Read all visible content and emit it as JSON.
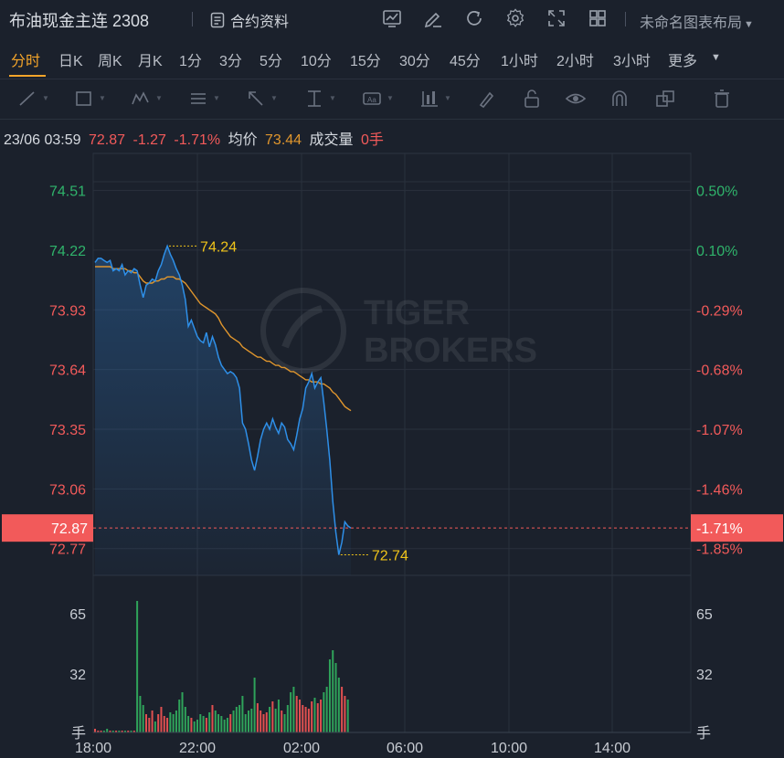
{
  "header": {
    "title": "布油现金主连 2308",
    "contract_info": "合约资料",
    "layout_name": "未命名图表布局",
    "icons": [
      "chart-type-icon",
      "draw-icon",
      "refresh-icon",
      "settings-icon",
      "fullscreen-icon",
      "layout-grid-icon"
    ]
  },
  "periods": {
    "items": [
      "分时",
      "日K",
      "周K",
      "月K",
      "1分",
      "3分",
      "5分",
      "10分",
      "15分",
      "30分",
      "45分",
      "1小时",
      "2小时",
      "3小时",
      "更多"
    ],
    "active": "分时"
  },
  "toolbar": {
    "icons": [
      "line-tool-icon",
      "rectangle-tool-icon",
      "pattern-tool-icon",
      "fibonacci-tool-icon",
      "arrow-tool-icon",
      "measure-tool-icon",
      "text-tool-icon",
      "indicator-tool-icon",
      "brush-icon",
      "lock-icon",
      "eye-icon",
      "magnet-icon",
      "layers-icon",
      "trash-icon"
    ]
  },
  "info": {
    "datetime": "23/06 03:59",
    "price": "72.87",
    "change": "-1.27",
    "change_pct": "-1.71%",
    "avg_label": "均价",
    "avg_value": "73.44",
    "volume_label": "成交量",
    "volume_value": "0手"
  },
  "chart_data": {
    "type": "line",
    "price_axis": [
      "74.51",
      "74.22",
      "73.93",
      "73.64",
      "73.35",
      "73.06",
      "72.77"
    ],
    "price_axis_values": [
      74.51,
      74.22,
      73.93,
      73.64,
      73.35,
      73.06,
      72.77
    ],
    "pct_axis": [
      "0.50%",
      "0.10%",
      "-0.29%",
      "-0.68%",
      "-1.07%",
      "-1.46%",
      "-1.85%"
    ],
    "current_price_label": "72.87",
    "current_pct_label": "-1.71%",
    "high_label": "74.24",
    "low_label": "72.74",
    "volume_axis": [
      "65",
      "32",
      "手"
    ],
    "volume_axis_values": [
      65,
      32,
      0
    ],
    "x_labels": [
      "18:00",
      "22:00",
      "02:00",
      "06:00",
      "10:00",
      "14:00"
    ],
    "ylim": [
      72.64,
      74.69
    ],
    "colors": {
      "price": "#2e8fe8",
      "avg": "#e0962d",
      "up": "#e05050",
      "down": "#2fa35a",
      "axis_up": "#2fb36b",
      "axis_down": "#f25a5a"
    },
    "price_series": [
      74.16,
      74.18,
      74.18,
      74.17,
      74.16,
      74.17,
      74.12,
      74.13,
      74.12,
      74.15,
      74.1,
      74.12,
      74.11,
      74.13,
      74.12,
      74.05,
      73.99,
      74.05,
      74.06,
      74.08,
      74.07,
      74.12,
      74.15,
      74.2,
      74.24,
      74.2,
      74.17,
      74.13,
      74.1,
      74.05,
      73.98,
      73.85,
      73.88,
      73.84,
      73.8,
      73.78,
      73.77,
      73.82,
      73.75,
      73.8,
      73.76,
      73.7,
      73.66,
      73.64,
      73.62,
      73.63,
      73.62,
      73.6,
      73.55,
      73.38,
      73.35,
      73.28,
      73.2,
      73.15,
      73.22,
      73.3,
      73.35,
      73.38,
      73.35,
      73.4,
      73.36,
      73.33,
      73.38,
      73.36,
      73.3,
      73.28,
      73.25,
      73.32,
      73.4,
      73.45,
      73.55,
      73.58,
      73.62,
      73.55,
      73.58,
      73.6,
      73.48,
      73.35,
      73.2,
      73.0,
      72.85,
      72.74,
      72.8,
      72.9,
      72.88,
      72.87
    ],
    "avg_series": [
      74.14,
      74.14,
      74.14,
      74.14,
      74.14,
      74.14,
      74.13,
      74.13,
      74.13,
      74.13,
      74.13,
      74.12,
      74.12,
      74.11,
      74.11,
      74.09,
      74.07,
      74.06,
      74.06,
      74.06,
      74.07,
      74.07,
      74.08,
      74.08,
      74.09,
      74.09,
      74.09,
      74.08,
      74.08,
      74.07,
      74.06,
      74.04,
      74.02,
      74.0,
      73.98,
      73.96,
      73.95,
      73.94,
      73.93,
      73.92,
      73.91,
      73.89,
      73.86,
      73.84,
      73.82,
      73.8,
      73.79,
      73.78,
      73.77,
      73.75,
      73.74,
      73.73,
      73.72,
      73.71,
      73.7,
      73.7,
      73.69,
      73.68,
      73.68,
      73.67,
      73.66,
      73.66,
      73.65,
      73.65,
      73.64,
      73.63,
      73.63,
      73.62,
      73.61,
      73.6,
      73.59,
      73.59,
      73.58,
      73.58,
      73.58,
      73.57,
      73.57,
      73.56,
      73.55,
      73.53,
      73.52,
      73.5,
      73.48,
      73.46,
      73.45,
      73.44
    ],
    "volumes": [
      2,
      1,
      1,
      1,
      2,
      1,
      1,
      1,
      1,
      1,
      1,
      1,
      1,
      1,
      72,
      20,
      15,
      10,
      8,
      12,
      6,
      10,
      14,
      9,
      8,
      11,
      10,
      12,
      18,
      22,
      14,
      9,
      8,
      6,
      7,
      10,
      9,
      8,
      11,
      15,
      12,
      10,
      9,
      7,
      8,
      10,
      12,
      14,
      15,
      20,
      10,
      12,
      13,
      30,
      16,
      12,
      10,
      11,
      14,
      17,
      13,
      18,
      12,
      10,
      15,
      22,
      25,
      20,
      18,
      15,
      14,
      13,
      17,
      19,
      16,
      18,
      22,
      25,
      40,
      45,
      38,
      30,
      25,
      20,
      18,
      0
    ]
  }
}
